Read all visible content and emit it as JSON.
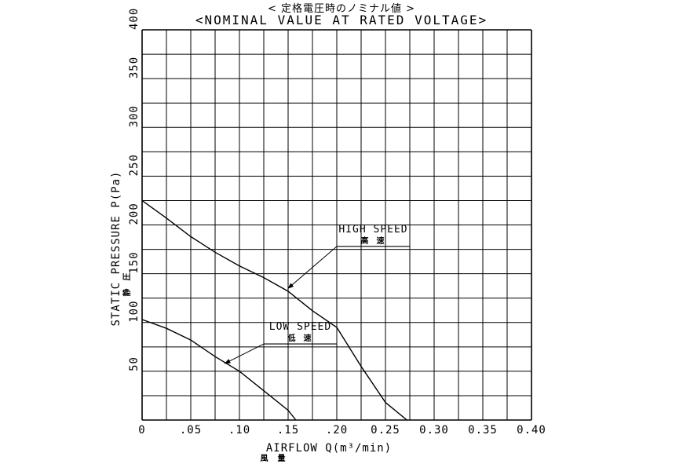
{
  "header": {
    "title_jp": "<  定格電圧時のノミナル値  >",
    "title_en": "<NOMINAL VALUE AT RATED VOLTAGE>"
  },
  "chart_data": {
    "type": "line",
    "xlabel": "AIRFLOW Q(m³/min)",
    "xlabel_jp": "風 量",
    "ylabel": "STATIC PRESSURE P(Pa)",
    "ylabel_jp": "静 圧",
    "xlim": [
      0,
      0.4
    ],
    "ylim": [
      0,
      400
    ],
    "x_ticks": [
      "0",
      ".05",
      ".10",
      ".15",
      ".20",
      "0.25",
      "0.30",
      "0.35",
      "0.40"
    ],
    "y_ticks": [
      "50",
      "100",
      "150",
      "200",
      "250",
      "300",
      "350",
      "400"
    ],
    "grid": true,
    "series": [
      {
        "name": "HIGH SPEED",
        "name_jp": "高 速",
        "points": [
          [
            0,
            225
          ],
          [
            0.025,
            207
          ],
          [
            0.05,
            188
          ],
          [
            0.075,
            172
          ],
          [
            0.1,
            158
          ],
          [
            0.125,
            146
          ],
          [
            0.15,
            132
          ],
          [
            0.175,
            112
          ],
          [
            0.2,
            95
          ],
          [
            0.225,
            55
          ],
          [
            0.25,
            18
          ],
          [
            0.272,
            0
          ]
        ]
      },
      {
        "name": "LOW SPEED",
        "name_jp": "低 速",
        "points": [
          [
            0,
            103
          ],
          [
            0.025,
            94
          ],
          [
            0.05,
            82
          ],
          [
            0.075,
            65
          ],
          [
            0.1,
            50
          ],
          [
            0.125,
            30
          ],
          [
            0.15,
            10
          ],
          [
            0.158,
            0
          ]
        ]
      }
    ]
  }
}
